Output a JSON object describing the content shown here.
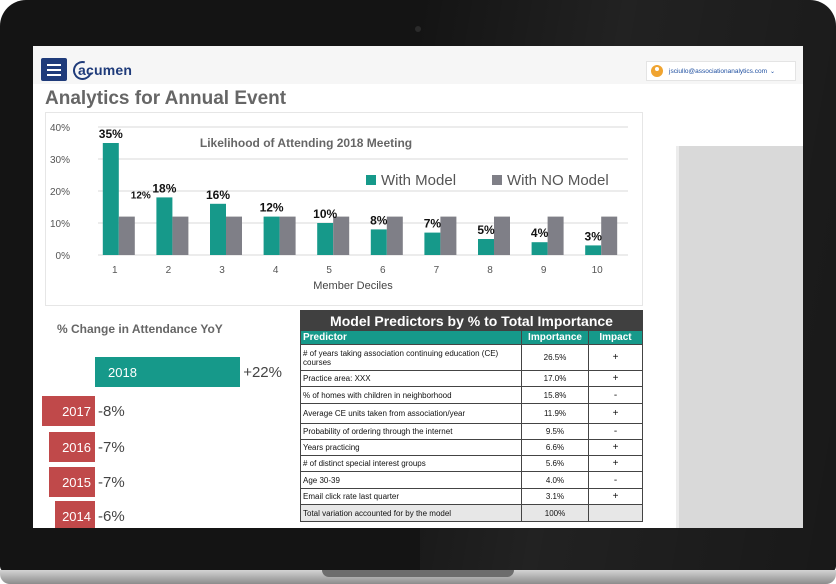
{
  "app": {
    "logo_text": "acumen",
    "user_email": "jsciullo@associationanalytics.com"
  },
  "page": {
    "title": "Analytics for Annual Event"
  },
  "chart_data": {
    "type": "bar",
    "title": "Likelihood of Attending 2018 Meeting",
    "xlabel": "Member Deciles",
    "ylabel": "",
    "categories": [
      "1",
      "2",
      "3",
      "4",
      "5",
      "6",
      "7",
      "8",
      "9",
      "10"
    ],
    "series": [
      {
        "name": "With Model",
        "color": "#16998a",
        "values": [
          35,
          18,
          16,
          12,
          10,
          8,
          7,
          5,
          4,
          3
        ],
        "labels": [
          "35%",
          "18%",
          "16%",
          "12%",
          "10%",
          "8%",
          "7%",
          "5%",
          "4%",
          "3%"
        ]
      },
      {
        "name": "With NO Model",
        "color": "#7f7f87",
        "values": [
          12,
          12,
          12,
          12,
          12,
          12,
          12,
          12,
          12,
          12
        ],
        "labels": [
          "12%"
        ]
      }
    ],
    "yticks": [
      "0%",
      "10%",
      "20%",
      "30%",
      "40%"
    ],
    "ylim": [
      0,
      40
    ],
    "grid": true,
    "legend_position": "top-right"
  },
  "yoy": {
    "title": "% Change in Attendance YoY",
    "items": [
      {
        "year": "2018",
        "change": "+22%",
        "value": 22,
        "color": "#16998a"
      },
      {
        "year": "2017",
        "change": "-8%",
        "value": -8,
        "color": "#c0494a"
      },
      {
        "year": "2016",
        "change": "-7%",
        "value": -7,
        "color": "#c0494a"
      },
      {
        "year": "2015",
        "change": "-7%",
        "value": -7,
        "color": "#c0494a"
      },
      {
        "year": "2014",
        "change": "-6%",
        "value": -6,
        "color": "#c0494a"
      }
    ]
  },
  "predictors": {
    "title": "Model Predictors by % to Total Importance",
    "headers": {
      "predictor": "Predictor",
      "importance": "Importance",
      "impact": "Impact"
    },
    "rows": [
      {
        "predictor": "# of years taking association continuing education (CE) courses",
        "importance": "26.5%",
        "impact": "+"
      },
      {
        "predictor": "Practice area: XXX",
        "importance": "17.0%",
        "impact": "+"
      },
      {
        "predictor": "% of homes with children in neighborhood",
        "importance": "15.8%",
        "impact": "-"
      },
      {
        "predictor": "Average CE units taken from association/year",
        "importance": "11.9%",
        "impact": "+"
      },
      {
        "predictor": "Probability of ordering through the internet",
        "importance": "9.5%",
        "impact": "-"
      },
      {
        "predictor": "Years practicing",
        "importance": "6.6%",
        "impact": "+"
      },
      {
        "predictor": "# of distinct special interest groups",
        "importance": "5.6%",
        "impact": "+"
      },
      {
        "predictor": "Age 30-39",
        "importance": "4.0%",
        "impact": "-"
      },
      {
        "predictor": "Email click rate last quarter",
        "importance": "3.1%",
        "impact": "+"
      }
    ],
    "total": {
      "predictor": "Total variation accounted for by the model",
      "importance": "100%",
      "impact": ""
    }
  }
}
